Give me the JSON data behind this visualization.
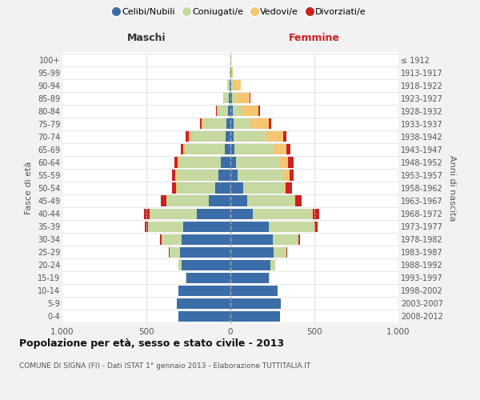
{
  "age_groups": [
    "0-4",
    "5-9",
    "10-14",
    "15-19",
    "20-24",
    "25-29",
    "30-34",
    "35-39",
    "40-44",
    "45-49",
    "50-54",
    "55-59",
    "60-64",
    "65-69",
    "70-74",
    "75-79",
    "80-84",
    "85-89",
    "90-94",
    "95-99",
    "100+"
  ],
  "birth_years": [
    "2008-2012",
    "2003-2007",
    "1998-2002",
    "1993-1997",
    "1988-1992",
    "1983-1987",
    "1978-1982",
    "1973-1977",
    "1968-1972",
    "1963-1967",
    "1958-1962",
    "1953-1957",
    "1948-1952",
    "1943-1947",
    "1938-1942",
    "1933-1937",
    "1928-1932",
    "1923-1927",
    "1918-1922",
    "1913-1917",
    "≤ 1912"
  ],
  "males": {
    "celibi": [
      310,
      320,
      310,
      260,
      290,
      300,
      290,
      280,
      200,
      130,
      90,
      70,
      55,
      35,
      30,
      25,
      15,
      8,
      5,
      2,
      2
    ],
    "coniugati": [
      0,
      0,
      0,
      5,
      20,
      60,
      120,
      210,
      280,
      250,
      230,
      250,
      250,
      230,
      200,
      130,
      60,
      30,
      12,
      2,
      0
    ],
    "vedovi": [
      0,
      0,
      0,
      0,
      0,
      0,
      0,
      0,
      2,
      3,
      5,
      8,
      10,
      15,
      20,
      15,
      8,
      5,
      2,
      0,
      0
    ],
    "divorziati": [
      0,
      0,
      0,
      0,
      0,
      5,
      10,
      20,
      30,
      30,
      25,
      20,
      20,
      15,
      15,
      10,
      5,
      2,
      0,
      0,
      0
    ]
  },
  "females": {
    "nubili": [
      295,
      300,
      280,
      230,
      240,
      255,
      250,
      230,
      135,
      100,
      75,
      45,
      35,
      25,
      20,
      18,
      12,
      8,
      5,
      3,
      2
    ],
    "coniugate": [
      0,
      0,
      0,
      5,
      25,
      80,
      155,
      265,
      350,
      280,
      240,
      270,
      260,
      230,
      195,
      100,
      55,
      25,
      15,
      3,
      0
    ],
    "vedove": [
      0,
      0,
      0,
      0,
      0,
      0,
      0,
      3,
      5,
      8,
      15,
      35,
      50,
      80,
      100,
      110,
      100,
      80,
      40,
      8,
      2
    ],
    "divorziate": [
      0,
      0,
      0,
      0,
      0,
      5,
      10,
      20,
      40,
      35,
      35,
      25,
      30,
      20,
      18,
      15,
      8,
      5,
      2,
      0,
      0
    ]
  },
  "colors": {
    "celibi": "#3b6ea8",
    "coniugati": "#c5d9a0",
    "vedovi": "#f5c672",
    "divorziati": "#cc2222"
  },
  "title": "Popolazione per età, sesso e stato civile - 2013",
  "subtitle": "COMUNE DI SIGNA (FI) - Dati ISTAT 1° gennaio 2013 - Elaborazione TUTTITALIA.IT",
  "xlabel_left": "Maschi",
  "xlabel_right": "Femmine",
  "ylabel_left": "Fasce di età",
  "ylabel_right": "Anni di nascita",
  "xlim": 1000,
  "legend_labels": [
    "Celibi/Nubili",
    "Coniugati/e",
    "Vedovi/e",
    "Divorziati/e"
  ],
  "bg_color": "#f2f2f2",
  "plot_bg_color": "#ffffff"
}
